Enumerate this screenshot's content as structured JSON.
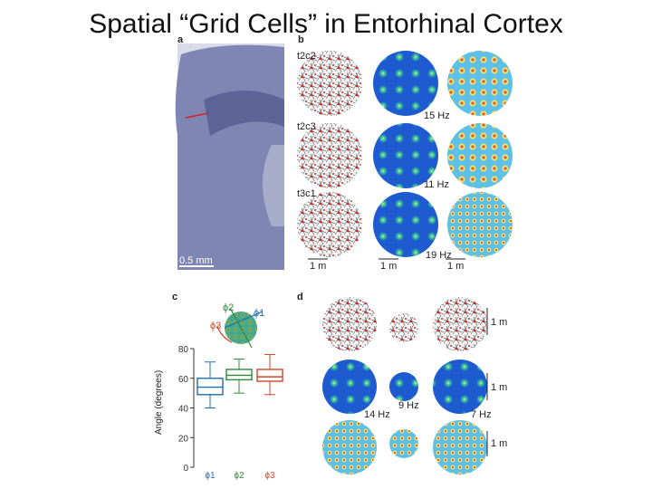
{
  "slide": {
    "title": "Spatial “Grid Cells” in Entorhinal Cortex"
  },
  "panel_a": {
    "label": "a",
    "scale_bar": "0.5 mm"
  },
  "panel_b": {
    "label": "b",
    "rows": [
      {
        "cell": "t2c2",
        "rate": "15 Hz"
      },
      {
        "cell": "t2c3",
        "rate": "11 Hz"
      },
      {
        "cell": "t3c1",
        "rate": "19 Hz"
      }
    ],
    "scale_labels": [
      "1 m",
      "1 m",
      "1 m"
    ]
  },
  "panel_c": {
    "label": "c",
    "phi_labels": [
      "ϕ2",
      "ϕ1",
      "ϕ3"
    ],
    "chart_data": {
      "type": "box",
      "categories": [
        "ϕ1",
        "ϕ2",
        "ϕ3"
      ],
      "ylabel": "Angle (degrees)",
      "ylim": [
        0,
        80
      ],
      "yticks": [
        0,
        20,
        40,
        60,
        80
      ],
      "series": [
        {
          "category": "ϕ1",
          "min": 40,
          "q1": 49,
          "median": 54,
          "q3": 60,
          "max": 71,
          "color": "#1f6fb4"
        },
        {
          "category": "ϕ2",
          "min": 50,
          "q1": 59,
          "median": 62,
          "q3": 66,
          "max": 73,
          "color": "#2e8b3a"
        },
        {
          "category": "ϕ3",
          "min": 49,
          "q1": 58,
          "median": 61,
          "q3": 66,
          "max": 76,
          "color": "#d2452b"
        }
      ]
    }
  },
  "panel_d": {
    "label": "d",
    "scale_labels": [
      "1 m",
      "1 m",
      "1 m"
    ],
    "rates": [
      "14 Hz",
      "9 Hz",
      "7 Hz"
    ]
  }
}
